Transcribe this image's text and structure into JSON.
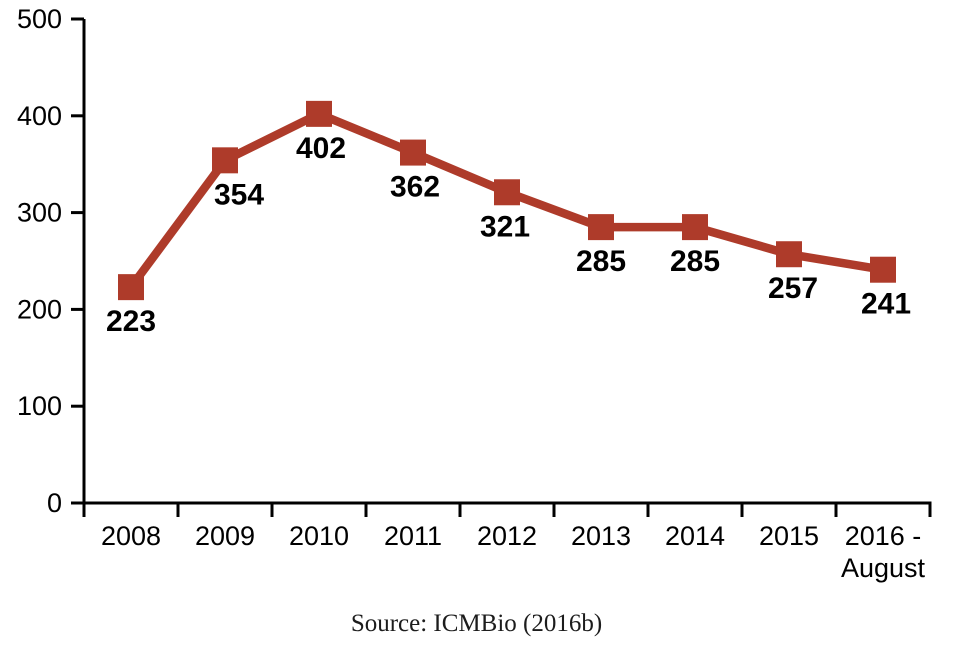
{
  "chart_data": {
    "type": "line",
    "categories": [
      "2008",
      "2009",
      "2010",
      "2011",
      "2012",
      "2013",
      "2014",
      "2015",
      "2016 - August"
    ],
    "x_labels": [
      [
        "2008"
      ],
      [
        "2009"
      ],
      [
        "2010"
      ],
      [
        "2011"
      ],
      [
        "2012"
      ],
      [
        "2013"
      ],
      [
        "2014"
      ],
      [
        "2015"
      ],
      [
        "2016 -",
        "August"
      ]
    ],
    "values": [
      223,
      354,
      402,
      362,
      321,
      285,
      285,
      257,
      241
    ],
    "data_labels": [
      "223",
      "354",
      "402",
      "362",
      "321",
      "285",
      "285",
      "257",
      "241"
    ],
    "title": "",
    "xlabel": "",
    "ylabel": "",
    "ylim": [
      0,
      500
    ],
    "yticks": [
      0,
      100,
      200,
      300,
      400,
      500
    ],
    "grid": false,
    "legend": "none",
    "marker": "square",
    "line_color": "#AE3B2A",
    "axis_color": "#000000",
    "label_dx": [
      0,
      14,
      2,
      2,
      -2,
      0,
      0,
      4,
      3
    ]
  },
  "caption": {
    "text": "Source: ICMBio (2016b)"
  }
}
